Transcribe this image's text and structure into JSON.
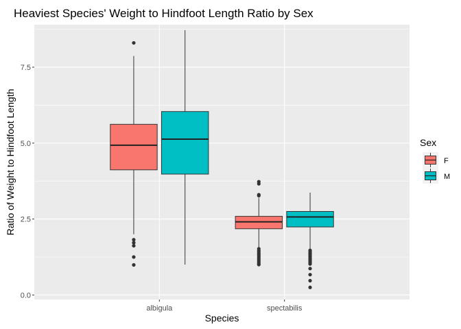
{
  "chart_data": {
    "type": "boxplot",
    "title": "Heaviest Species' Weight to Hindfoot Length Ratio by Sex",
    "xlabel": "Species",
    "ylabel": "Ratio of Weight to Hindfoot Length",
    "categories": [
      "albigula",
      "spectabilis"
    ],
    "ylim": [
      -0.15,
      8.9
    ],
    "yticks": [
      0.0,
      2.5,
      5.0,
      7.5
    ],
    "ytick_labels": [
      "0.0",
      "2.5",
      "5.0",
      "7.5"
    ],
    "grid": true,
    "legend": {
      "title": "Sex",
      "position": "right"
    },
    "series": [
      {
        "name": "F",
        "color": "#F8766D",
        "boxes": [
          {
            "category": "albigula",
            "whisker_low": 2.0,
            "q1": 4.12,
            "median": 4.93,
            "q3": 5.62,
            "whisker_high": 7.87,
            "outliers": [
              8.3,
              1.82,
              1.72,
              1.62,
              1.25,
              0.99
            ]
          },
          {
            "category": "spectabilis",
            "whisker_low": 1.56,
            "q1": 2.18,
            "median": 2.41,
            "q3": 2.59,
            "whisker_high": 3.2,
            "outliers": [
              3.73,
              3.66,
              3.3,
              3.27,
              1.52,
              1.46,
              1.41,
              1.36,
              1.32,
              1.27,
              1.22,
              1.17,
              1.12,
              1.07,
              1.02,
              1.0
            ]
          }
        ]
      },
      {
        "name": "M",
        "color": "#00BFC4",
        "boxes": [
          {
            "category": "albigula",
            "whisker_low": 1.0,
            "q1": 3.98,
            "median": 5.13,
            "q3": 6.04,
            "whisker_high": 8.72,
            "outliers": []
          },
          {
            "category": "spectabilis",
            "whisker_low": 1.5,
            "q1": 2.24,
            "median": 2.57,
            "q3": 2.75,
            "whisker_high": 3.37,
            "outliers": [
              1.47,
              1.42,
              1.37,
              1.32,
              1.27,
              1.22,
              1.17,
              1.12,
              1.07,
              1.02,
              0.87,
              0.67,
              0.47,
              0.25
            ]
          }
        ]
      }
    ]
  }
}
